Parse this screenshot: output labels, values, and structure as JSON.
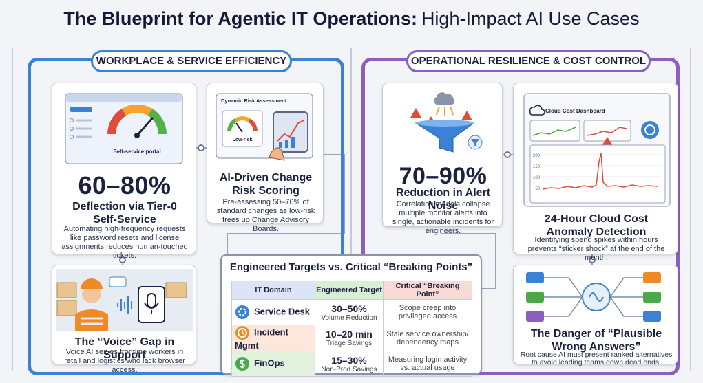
{
  "header": {
    "title_bold": "The Blueprint for Agentic IT Operations:",
    "title_light": "High-Impact AI Use Cases"
  },
  "sections": [
    {
      "title": "WORKPLACE & SERVICE EFFICIENCY"
    },
    {
      "title": "OPERATIONAL RESILIENCE & COST CONTROL"
    }
  ],
  "cards": [
    {
      "illustration_label": "Self-service portal",
      "stat": "60–80%",
      "heading": "Deflection via Tier-0 Self-Service",
      "body": "Automating high-frequency requests like password resets and license assignments reduces human-touched tickets."
    },
    {
      "illustration_title": "Dynamic Risk Assessment",
      "illustration_label": "Low-risk",
      "heading": "AI-Driven Change Risk Scoring",
      "body": "Pre-assessing 50–70% of standard changes as low-risk frees up Change Advisory Boards."
    },
    {
      "heading": "The “Voice” Gap in Support",
      "body": "Voice AI serves frontline workers in retail and logistics who lack browser access."
    },
    {
      "stat": "70–90%",
      "heading": "Reduction in Alert Noise",
      "body": "Correlation models collapse multiple monitor alerts into single, actionable incidents for engineers."
    },
    {
      "illustration_title": "Cloud Cost Dashboard",
      "illustration_ticks": [
        200,
        150,
        100,
        50
      ],
      "heading": "24-Hour Cloud Cost Anomaly Detection",
      "body": "Identifying spend spikes within hours prevents “sticker shock” at the end of the month."
    },
    {
      "heading": "The Danger of “Plausible Wrong Answers”",
      "body": "Root cause AI must present ranked alternatives to avoid leading teams down dead ends."
    }
  ],
  "table": {
    "title": "Engineered Targets vs. Critical “Breaking Points”",
    "columns": [
      "IT Domain",
      "Engineered Target",
      "Critical “Breaking Point”"
    ],
    "rows": [
      [
        "Service Desk",
        "30–50%",
        "Volume Reduction",
        "Scope creep into privileged access"
      ],
      [
        "Incident Mgmt",
        "10–20 min",
        "Triage Savings",
        "Stale service ownership/ dependency maps"
      ],
      [
        "FinOps",
        "15–30%",
        "Non-Prod Savings",
        "Measuring login activity vs. actual usage"
      ]
    ]
  }
}
